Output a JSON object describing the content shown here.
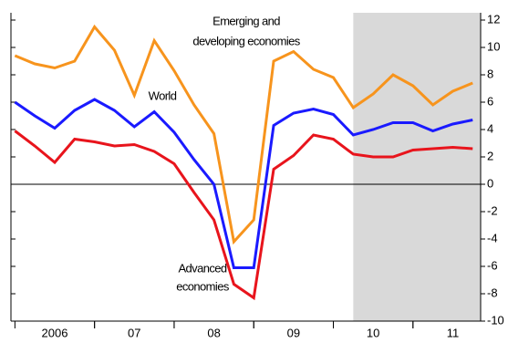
{
  "chart_data": {
    "type": "line",
    "annotations": [
      "Emerging and",
      "developing economies",
      "World",
      "Advanced",
      "economies"
    ],
    "x": [
      2006.0,
      2006.25,
      2006.5,
      2006.75,
      2007.0,
      2007.25,
      2007.5,
      2007.75,
      2008.0,
      2008.25,
      2008.5,
      2008.75,
      2009.0,
      2009.25,
      2009.5,
      2009.75,
      2010.0,
      2010.25,
      2010.5,
      2010.75,
      2011.0,
      2011.25,
      2011.5,
      2011.75
    ],
    "series": [
      {
        "name": "Emerging and developing economies",
        "color": "#f7941d",
        "values": [
          9.4,
          8.8,
          8.5,
          9.0,
          11.5,
          9.8,
          6.5,
          10.5,
          8.3,
          5.8,
          3.7,
          -4.2,
          -2.6,
          9.0,
          9.7,
          8.4,
          7.8,
          5.6,
          6.6,
          8.0,
          7.2,
          5.8,
          6.8,
          7.4
        ]
      },
      {
        "name": "World",
        "color": "#1a1aff",
        "values": [
          6.0,
          5.0,
          4.1,
          5.4,
          6.2,
          5.4,
          4.2,
          5.3,
          3.8,
          1.8,
          0.0,
          -6.1,
          -6.1,
          4.3,
          5.2,
          5.5,
          5.1,
          3.6,
          4.0,
          4.5,
          4.5,
          3.9,
          4.4,
          4.7
        ]
      },
      {
        "name": "Advanced economies",
        "color": "#e8141c",
        "values": [
          3.9,
          2.8,
          1.6,
          3.3,
          3.1,
          2.8,
          2.9,
          2.4,
          1.5,
          -0.6,
          -2.6,
          -7.3,
          -8.3,
          1.1,
          2.1,
          3.6,
          3.3,
          2.2,
          2.0,
          2.0,
          2.5,
          2.6,
          2.7,
          2.6
        ]
      }
    ],
    "shaded_x": [
      2010.25,
      2011.85
    ],
    "xlim": [
      2005.95,
      2011.85
    ],
    "xticks": [
      {
        "value": 2006.5,
        "label": "2006"
      },
      {
        "value": 2007.5,
        "label": "07"
      },
      {
        "value": 2008.5,
        "label": "08"
      },
      {
        "value": 2009.5,
        "label": "09"
      },
      {
        "value": 2010.5,
        "label": "10"
      },
      {
        "value": 2011.5,
        "label": "11"
      }
    ],
    "ylim": [
      -10,
      12
    ],
    "yticks": [
      12,
      10,
      8,
      6,
      4,
      2,
      0,
      -2,
      -4,
      -6,
      -8,
      -10
    ],
    "zero_line": true
  }
}
